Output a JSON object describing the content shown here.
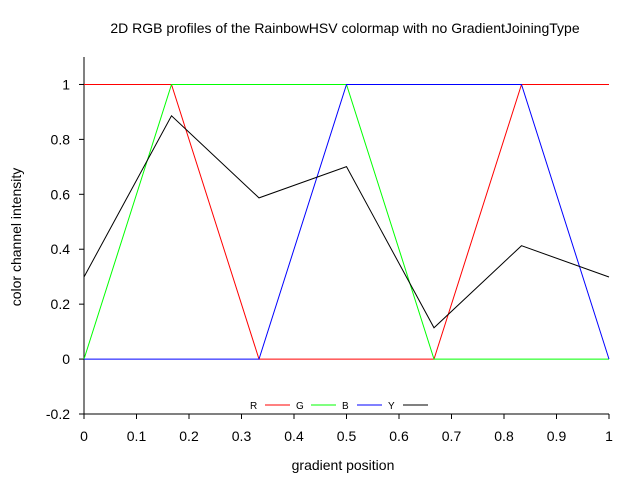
{
  "chart_data": {
    "type": "line",
    "title": "2D RGB profiles of the RainbowHSV colormap with no GradientJoiningType",
    "xlabel": "gradient position",
    "ylabel": "color channel intensity",
    "xlim": [
      0,
      1
    ],
    "ylim": [
      -0.2,
      1.1
    ],
    "xticks": [
      0,
      0.1,
      0.2,
      0.3,
      0.4,
      0.5,
      0.6,
      0.7,
      0.8,
      0.9,
      1
    ],
    "xtick_labels": [
      "0",
      "0.1",
      "0.2",
      "0.3",
      "0.4",
      "0.5",
      "0.6",
      "0.7",
      "0.8",
      "0.9",
      "1"
    ],
    "yticks": [
      -0.2,
      0,
      0.2,
      0.4,
      0.6,
      0.8,
      1
    ],
    "ytick_labels": [
      "-0.2",
      "0",
      "0.2",
      "0.4",
      "0.6",
      "0.8",
      "1"
    ],
    "grid": false,
    "legend_position": "bottom-center",
    "series": [
      {
        "name": "R",
        "color": "#ff0000",
        "x": [
          0,
          0.1667,
          0.3333,
          0.5,
          0.6667,
          0.8333,
          1
        ],
        "y": [
          1,
          1,
          0,
          0,
          0,
          1,
          1
        ]
      },
      {
        "name": "G",
        "color": "#00ff00",
        "x": [
          0,
          0.1667,
          0.3333,
          0.5,
          0.6667,
          0.8333,
          1
        ],
        "y": [
          0,
          1,
          1,
          1,
          0,
          0,
          0
        ]
      },
      {
        "name": "B",
        "color": "#0000ff",
        "x": [
          0,
          0.1667,
          0.3333,
          0.5,
          0.6667,
          0.8333,
          1
        ],
        "y": [
          0,
          0,
          0,
          1,
          1,
          1,
          0
        ]
      },
      {
        "name": "Y",
        "color": "#000000",
        "x": [
          0,
          0.1667,
          0.3333,
          0.5,
          0.6667,
          0.8333,
          1
        ],
        "y": [
          0.299,
          0.886,
          0.587,
          0.701,
          0.114,
          0.413,
          0.299
        ]
      }
    ]
  }
}
